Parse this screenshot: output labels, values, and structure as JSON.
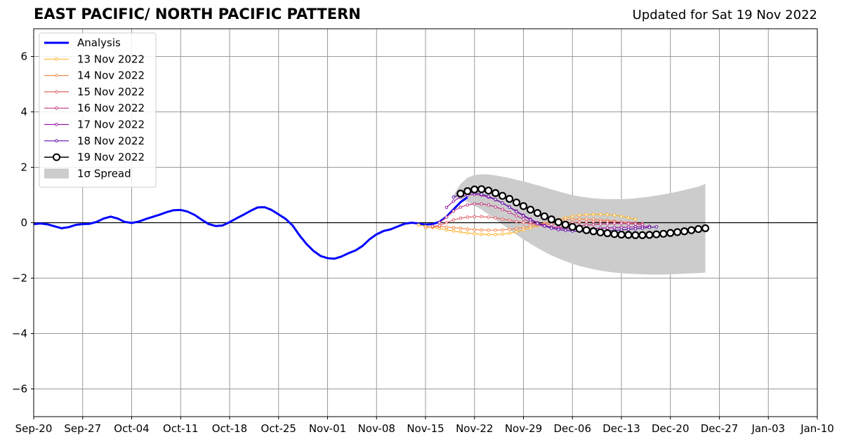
{
  "header": {
    "title": "EAST PACIFIC/ NORTH PACIFIC PATTERN",
    "updated": "Updated for Sat 19 Nov 2022"
  },
  "chart_data": {
    "type": "line",
    "x_start": "2022-09-20",
    "x_end": "2023-01-10",
    "xticks": [
      {
        "date": "2022-09-20",
        "label": "Sep-20"
      },
      {
        "date": "2022-09-27",
        "label": "Sep-27"
      },
      {
        "date": "2022-10-04",
        "label": "Oct-04"
      },
      {
        "date": "2022-10-11",
        "label": "Oct-11"
      },
      {
        "date": "2022-10-18",
        "label": "Oct-18"
      },
      {
        "date": "2022-10-25",
        "label": "Oct-25"
      },
      {
        "date": "2022-11-01",
        "label": "Nov-01"
      },
      {
        "date": "2022-11-08",
        "label": "Nov-08"
      },
      {
        "date": "2022-11-15",
        "label": "Nov-15"
      },
      {
        "date": "2022-11-22",
        "label": "Nov-22"
      },
      {
        "date": "2022-11-29",
        "label": "Nov-29"
      },
      {
        "date": "2022-12-06",
        "label": "Dec-06"
      },
      {
        "date": "2022-12-13",
        "label": "Dec-13"
      },
      {
        "date": "2022-12-20",
        "label": "Dec-20"
      },
      {
        "date": "2022-12-27",
        "label": "Dec-27"
      },
      {
        "date": "2023-01-03",
        "label": "Jan-03"
      },
      {
        "date": "2023-01-10",
        "label": "Jan-10"
      }
    ],
    "ylim": [
      -7,
      7
    ],
    "yticks": [
      {
        "value": 6,
        "label": "6"
      },
      {
        "value": 4,
        "label": "4"
      },
      {
        "value": 2,
        "label": "2"
      },
      {
        "value": 0,
        "label": "0"
      },
      {
        "value": -2,
        "label": "−2"
      },
      {
        "value": -4,
        "label": "−4"
      },
      {
        "value": -6,
        "label": "−6"
      }
    ],
    "grid": true,
    "legend_position": "top-left",
    "analysis": {
      "name": "Analysis",
      "color": "#0000ff",
      "start_date": "2022-09-20",
      "values": [
        -0.05,
        -0.03,
        -0.06,
        -0.13,
        -0.2,
        -0.16,
        -0.08,
        -0.05,
        -0.04,
        0.03,
        0.15,
        0.22,
        0.15,
        0.03,
        -0.01,
        0.04,
        0.13,
        0.21,
        0.29,
        0.38,
        0.45,
        0.46,
        0.4,
        0.28,
        0.11,
        -0.05,
        -0.12,
        -0.1,
        0.02,
        0.16,
        0.29,
        0.43,
        0.55,
        0.56,
        0.46,
        0.3,
        0.14,
        -0.1,
        -0.46,
        -0.77,
        -1.02,
        -1.2,
        -1.28,
        -1.3,
        -1.22,
        -1.1,
        -1.0,
        -0.84,
        -0.6,
        -0.42,
        -0.3,
        -0.24,
        -0.14,
        -0.04,
        0.0,
        -0.03,
        -0.07,
        -0.05,
        0.03,
        0.22,
        0.48,
        0.74,
        0.92
      ]
    },
    "forecasts": [
      {
        "name": "13 Nov 2022",
        "color": "#fcb42c",
        "start_date": "2022-11-14",
        "values": [
          -0.08,
          -0.13,
          -0.17,
          -0.21,
          -0.26,
          -0.3,
          -0.34,
          -0.37,
          -0.4,
          -0.42,
          -0.43,
          -0.43,
          -0.41,
          -0.38,
          -0.33,
          -0.26,
          -0.19,
          -0.11,
          -0.03,
          0.05,
          0.12,
          0.18,
          0.23,
          0.27,
          0.29,
          0.3,
          0.3,
          0.29,
          0.27,
          0.23,
          0.18,
          0.12
        ]
      },
      {
        "name": "14 Nov 2022",
        "color": "#f3894d",
        "start_date": "2022-11-15",
        "values": [
          -0.18,
          -0.15,
          -0.13,
          -0.16,
          -0.18,
          -0.2,
          -0.23,
          -0.25,
          -0.26,
          -0.27,
          -0.27,
          -0.26,
          -0.24,
          -0.21,
          -0.17,
          -0.12,
          -0.07,
          -0.02,
          0.03,
          0.07,
          0.1,
          0.12,
          0.13,
          0.13,
          0.12,
          0.1,
          0.08,
          0.05,
          0.02,
          -0.01,
          -0.04
        ]
      },
      {
        "name": "15 Nov 2022",
        "color": "#e1636a",
        "start_date": "2022-11-16",
        "values": [
          -0.13,
          -0.1,
          0.0,
          0.1,
          0.16,
          0.2,
          0.22,
          0.22,
          0.2,
          0.17,
          0.13,
          0.09,
          0.04,
          0.0,
          -0.03,
          -0.05,
          -0.06,
          -0.06,
          -0.05,
          -0.03,
          0.0,
          0.02,
          0.03,
          0.04,
          0.04,
          0.04,
          0.03,
          0.02,
          0.0,
          -0.02,
          -0.04
        ]
      },
      {
        "name": "16 Nov 2022",
        "color": "#c13b82",
        "start_date": "2022-11-17",
        "values": [
          0.0,
          0.2,
          0.42,
          0.56,
          0.64,
          0.68,
          0.68,
          0.64,
          0.57,
          0.48,
          0.37,
          0.25,
          0.13,
          0.02,
          -0.07,
          -0.13,
          -0.16,
          -0.17,
          -0.16,
          -0.14,
          -0.11,
          -0.09,
          -0.07,
          -0.05,
          -0.04,
          -0.03,
          -0.03,
          -0.04,
          -0.05,
          -0.07
        ]
      },
      {
        "name": "17 Nov 2022",
        "color": "#9a1da3",
        "start_date": "2022-11-18",
        "values": [
          0.55,
          0.78,
          0.92,
          1.0,
          1.02,
          0.99,
          0.92,
          0.83,
          0.71,
          0.57,
          0.42,
          0.27,
          0.13,
          0.0,
          -0.1,
          -0.16,
          -0.2,
          -0.22,
          -0.23,
          -0.23,
          -0.22,
          -0.21,
          -0.2,
          -0.19,
          -0.18,
          -0.17,
          -0.16,
          -0.15,
          -0.14,
          -0.13
        ]
      },
      {
        "name": "18 Nov 2022",
        "color": "#5b0fa6",
        "start_date": "2022-11-19",
        "values": [
          0.92,
          1.03,
          1.08,
          1.08,
          1.03,
          0.95,
          0.84,
          0.71,
          0.56,
          0.4,
          0.25,
          0.1,
          -0.02,
          -0.12,
          -0.2,
          -0.25,
          -0.28,
          -0.3,
          -0.31,
          -0.31,
          -0.31,
          -0.3,
          -0.29,
          -0.28,
          -0.26,
          -0.24,
          -0.22,
          -0.2,
          -0.17,
          -0.15
        ]
      },
      {
        "name": "19 Nov 2022",
        "color": "#000000",
        "start_date": "2022-11-20",
        "values": [
          1.05,
          1.14,
          1.2,
          1.21,
          1.16,
          1.07,
          0.97,
          0.86,
          0.73,
          0.6,
          0.47,
          0.35,
          0.23,
          0.12,
          0.02,
          -0.07,
          -0.15,
          -0.22,
          -0.27,
          -0.31,
          -0.35,
          -0.38,
          -0.41,
          -0.43,
          -0.44,
          -0.45,
          -0.45,
          -0.44,
          -0.42,
          -0.4,
          -0.37,
          -0.34,
          -0.31,
          -0.27,
          -0.23,
          -0.2
        ]
      }
    ],
    "spread": {
      "name": "1σ Spread",
      "color": "#cccccc",
      "start_date": "2022-11-19",
      "upper": [
        1.0,
        1.4,
        1.62,
        1.72,
        1.75,
        1.74,
        1.71,
        1.66,
        1.61,
        1.55,
        1.49,
        1.42,
        1.35,
        1.28,
        1.2,
        1.13,
        1.06,
        1.0,
        0.95,
        0.91,
        0.88,
        0.86,
        0.85,
        0.85,
        0.85,
        0.86,
        0.88,
        0.91,
        0.94,
        0.98,
        1.02,
        1.07,
        1.12,
        1.18,
        1.24,
        1.3,
        1.4
      ],
      "lower": [
        0.9,
        0.85,
        0.75,
        0.62,
        0.47,
        0.3,
        0.12,
        -0.07,
        -0.25,
        -0.43,
        -0.6,
        -0.76,
        -0.91,
        -1.05,
        -1.18,
        -1.29,
        -1.39,
        -1.48,
        -1.56,
        -1.62,
        -1.68,
        -1.73,
        -1.77,
        -1.8,
        -1.82,
        -1.84,
        -1.85,
        -1.86,
        -1.87,
        -1.87,
        -1.87,
        -1.86,
        -1.85,
        -1.84,
        -1.83,
        -1.82,
        -1.8
      ]
    }
  }
}
